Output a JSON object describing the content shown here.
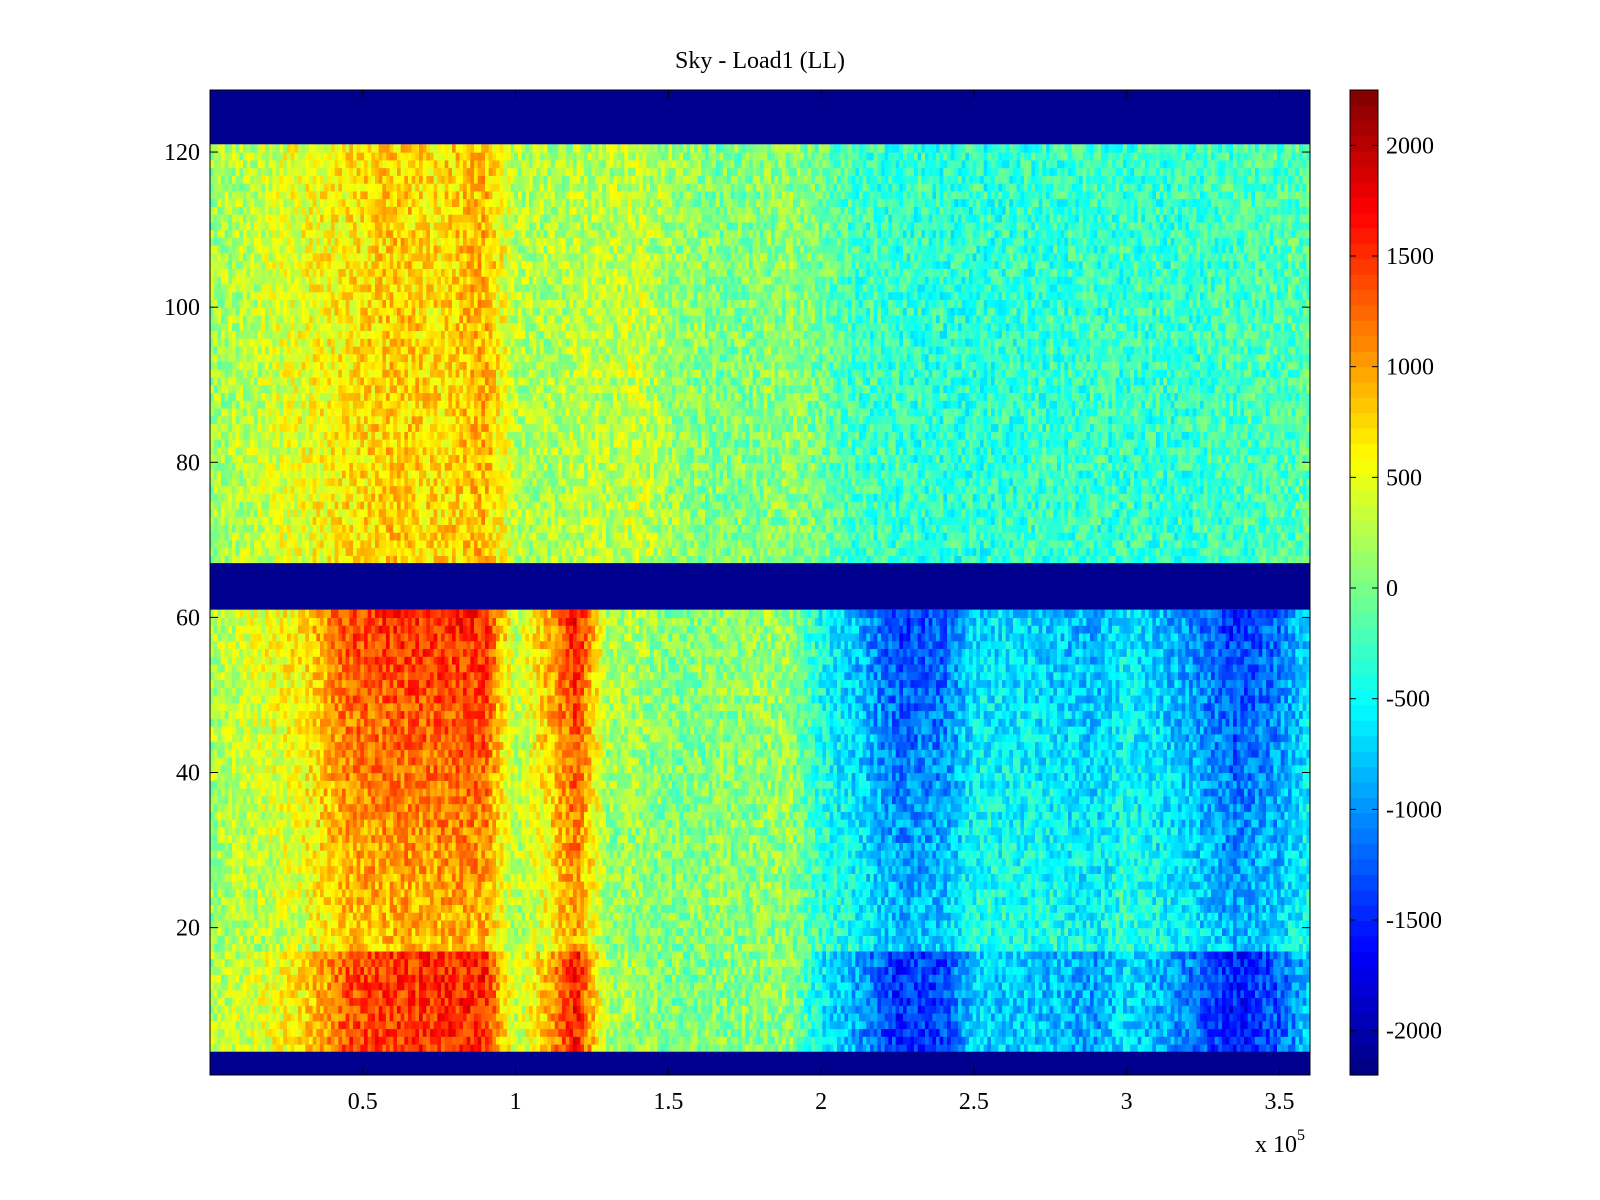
{
  "chart_data": {
    "type": "heatmap",
    "title": "Sky - Load1 (LL)",
    "xlabel": "",
    "ylabel": "",
    "x_multiplier_label": "x 10",
    "x_multiplier_exponent": "5",
    "xlim": [
      0,
      3.6
    ],
    "ylim": [
      1,
      128
    ],
    "x_ticks": [
      0.5,
      1,
      1.5,
      2,
      2.5,
      3,
      3.5
    ],
    "x_tick_labels": [
      "0.5",
      "1",
      "1.5",
      "2",
      "2.5",
      "3",
      "3.5"
    ],
    "y_ticks": [
      20,
      40,
      60,
      80,
      100,
      120
    ],
    "y_tick_labels": [
      "20",
      "40",
      "60",
      "80",
      "100",
      "120"
    ],
    "colormap": "jet",
    "clim": [
      -2200,
      2250
    ],
    "colorbar_ticks": [
      2000,
      1500,
      1000,
      500,
      0,
      -500,
      -1000,
      -1500,
      -2000
    ],
    "colorbar_tick_labels": [
      "2000",
      "1500",
      "1000",
      "500",
      "0",
      "-500",
      "-1000",
      "-1500",
      "-2000"
    ],
    "masked_rows": [
      [
        1,
        4
      ],
      [
        61,
        67
      ],
      [
        121,
        128
      ]
    ],
    "masked_color": "#00008f",
    "row_bands": [
      {
        "rows": [
          4,
          17
        ],
        "base_value": -50
      },
      {
        "rows": [
          17,
          61
        ],
        "base_value": 0
      },
      {
        "rows": [
          67,
          121
        ],
        "base_value": 0
      }
    ],
    "column_profile_x": [
      0.0,
      0.15,
      0.3,
      0.45,
      0.6,
      0.75,
      0.9,
      1.0,
      1.1,
      1.2,
      1.3,
      1.4,
      1.5,
      1.7,
      1.9,
      2.0,
      2.1,
      2.25,
      2.4,
      2.5,
      2.7,
      2.9,
      3.0,
      3.2,
      3.35,
      3.5,
      3.6
    ],
    "column_profile_low": [
      250,
      450,
      700,
      1400,
      1500,
      1550,
      1600,
      300,
      900,
      1700,
      200,
      200,
      50,
      100,
      150,
      -500,
      -800,
      -1400,
      -1300,
      -700,
      -700,
      -900,
      -600,
      -1000,
      -1500,
      -1200,
      -700
    ],
    "column_profile_high": [
      150,
      300,
      500,
      650,
      800,
      700,
      900,
      250,
      200,
      300,
      250,
      350,
      150,
      0,
      100,
      -50,
      -250,
      -300,
      -350,
      -350,
      -300,
      -300,
      -300,
      -300,
      -250,
      -200,
      -150
    ]
  }
}
